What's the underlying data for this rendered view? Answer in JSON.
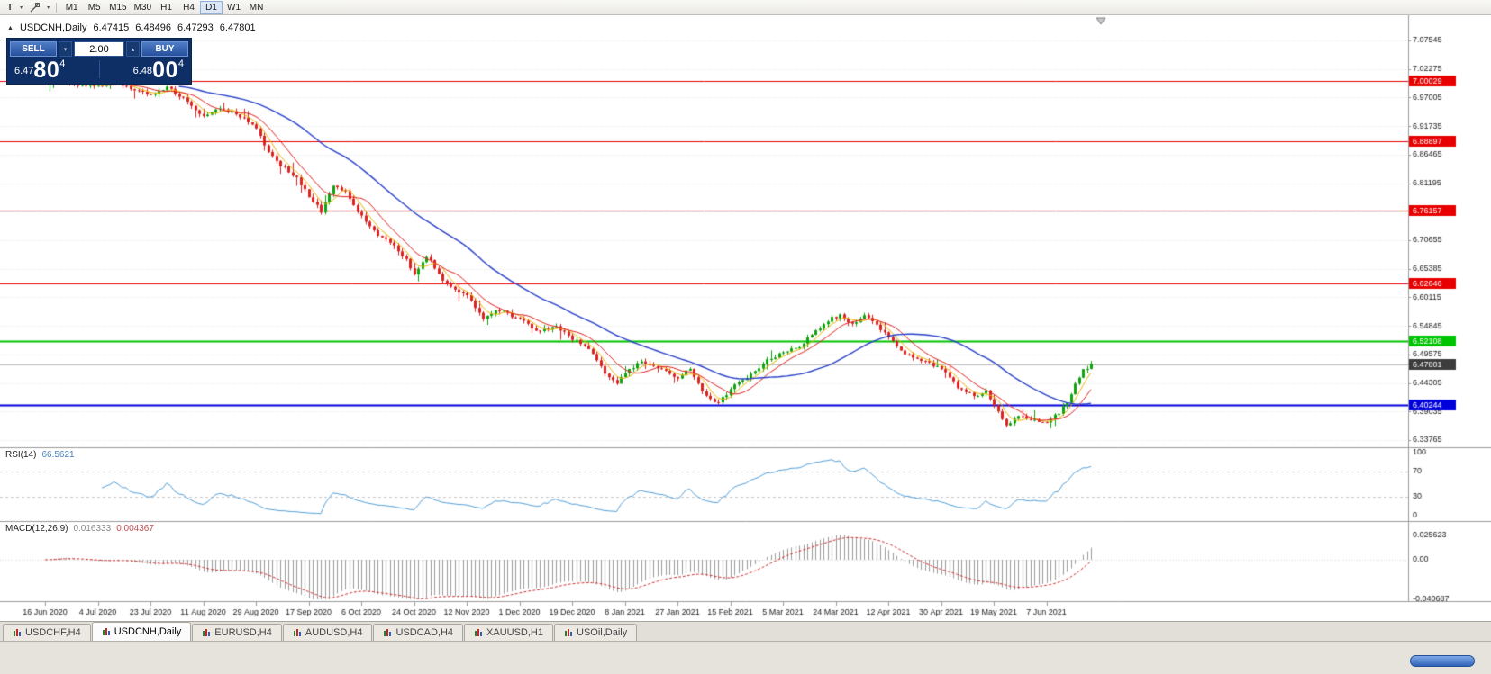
{
  "icons": {
    "chevron_down": "▾",
    "chevron_up": "▴",
    "symbol_marker": "▲"
  },
  "toolbar": {
    "text_tool_label": "T",
    "timeframes": [
      "M1",
      "M5",
      "M15",
      "M30",
      "H1",
      "H4",
      "D1",
      "W1",
      "MN"
    ],
    "active_timeframe": "D1"
  },
  "chart_header": {
    "symbol": "USDCNH,Daily",
    "open": "6.47415",
    "high": "6.48496",
    "low": "6.47293",
    "close": "6.47801"
  },
  "one_click": {
    "sell_label": "SELL",
    "buy_label": "BUY",
    "volume": "2.00",
    "sell_price": {
      "prefix": "6.47",
      "big": "80",
      "sup": "4"
    },
    "buy_price": {
      "prefix": "6.48",
      "big": "00",
      "sup": "4"
    }
  },
  "indicators": {
    "rsi": {
      "label": "RSI(14)",
      "value": "66.5621",
      "scale": [
        "100",
        "70",
        "30",
        "0"
      ],
      "levels": [
        70,
        30
      ]
    },
    "macd": {
      "label": "MACD(12,26,9)",
      "value_main": "0.016333",
      "value_signal": "0.004367",
      "scale": [
        "0.025623",
        "0.00",
        "-0.040687"
      ]
    }
  },
  "tabs": [
    {
      "label": "USDCHF,H4",
      "active": false
    },
    {
      "label": "USDCNH,Daily",
      "active": true
    },
    {
      "label": "EURUSD,H4",
      "active": false
    },
    {
      "label": "AUDUSD,H4",
      "active": false
    },
    {
      "label": "USDCAD,H4",
      "active": false
    },
    {
      "label": "XAUUSD,H1",
      "active": false
    },
    {
      "label": "USOil,Daily",
      "active": false
    }
  ],
  "chart_data": {
    "type": "candlestick",
    "symbol": "USDCNH",
    "period": "Daily",
    "ohlc_display": {
      "open": 6.47415,
      "high": 6.48496,
      "low": 6.47293,
      "close": 6.47801
    },
    "price_scale": {
      "ticks": [
        "7.07545",
        "7.02275",
        "6.97005",
        "6.91735",
        "6.86465",
        "6.81195",
        "6.75925",
        "6.70655",
        "6.65385",
        "6.60115",
        "6.54845",
        "6.49575",
        "6.44305",
        "6.39035",
        "6.33765"
      ]
    },
    "time_axis": [
      "16 Jun 2020",
      "4 Jul 2020",
      "23 Jul 2020",
      "11 Aug 2020",
      "29 Aug 2020",
      "17 Sep 2020",
      "6 Oct 2020",
      "24 Oct 2020",
      "12 Nov 2020",
      "1 Dec 2020",
      "19 Dec 2020",
      "8 Jan 2021",
      "27 Jan 2021",
      "15 Feb 2021",
      "5 Mar 2021",
      "24 Mar 2021",
      "12 Apr 2021",
      "30 Apr 2021",
      "19 May 2021",
      "7 Jun 2021"
    ],
    "levels": [
      {
        "value": 7.00029,
        "label": "7.00029",
        "color": "#e80000",
        "width": 1
      },
      {
        "value": 6.88897,
        "label": "6.88897",
        "color": "#e80000",
        "width": 1
      },
      {
        "value": 6.76157,
        "label": "6.76157",
        "color": "#e80000",
        "width": 1
      },
      {
        "value": 6.62646,
        "label": "6.62646",
        "color": "#e80000",
        "width": 1
      },
      {
        "value": 6.52108,
        "label": "6.52108",
        "color": "#00c400",
        "width": 2
      },
      {
        "value": 6.40244,
        "label": "6.40244",
        "color": "#0000dd",
        "width": 2
      }
    ],
    "current_price": {
      "value": 6.47801,
      "label": "6.47801",
      "line_color": "#b8b8b8",
      "tag_color": "#3c3c3c"
    },
    "candle_count": 259,
    "waypoints": [
      [
        0,
        6.999
      ],
      [
        4,
        7.008
      ],
      [
        8,
        6.994
      ],
      [
        13,
        6.992
      ],
      [
        17,
        7.0
      ],
      [
        21,
        6.986
      ],
      [
        26,
        6.975
      ],
      [
        30,
        6.99
      ],
      [
        34,
        6.968
      ],
      [
        39,
        6.936
      ],
      [
        43,
        6.95
      ],
      [
        47,
        6.942
      ],
      [
        52,
        6.914
      ],
      [
        55,
        6.87
      ],
      [
        58,
        6.846
      ],
      [
        62,
        6.822
      ],
      [
        65,
        6.788
      ],
      [
        68,
        6.76
      ],
      [
        71,
        6.806
      ],
      [
        74,
        6.795
      ],
      [
        78,
        6.75
      ],
      [
        82,
        6.716
      ],
      [
        86,
        6.698
      ],
      [
        89,
        6.67
      ],
      [
        91,
        6.644
      ],
      [
        94,
        6.678
      ],
      [
        98,
        6.634
      ],
      [
        101,
        6.616
      ],
      [
        104,
        6.604
      ],
      [
        108,
        6.564
      ],
      [
        112,
        6.578
      ],
      [
        117,
        6.56
      ],
      [
        122,
        6.538
      ],
      [
        126,
        6.548
      ],
      [
        130,
        6.525
      ],
      [
        134,
        6.505
      ],
      [
        138,
        6.46
      ],
      [
        141,
        6.442
      ],
      [
        143,
        6.464
      ],
      [
        147,
        6.482
      ],
      [
        151,
        6.47
      ],
      [
        156,
        6.454
      ],
      [
        159,
        6.47
      ],
      [
        162,
        6.428
      ],
      [
        165,
        6.405
      ],
      [
        168,
        6.42
      ],
      [
        170,
        6.442
      ],
      [
        174,
        6.458
      ],
      [
        178,
        6.486
      ],
      [
        182,
        6.498
      ],
      [
        186,
        6.51
      ],
      [
        190,
        6.54
      ],
      [
        194,
        6.562
      ],
      [
        196,
        6.568
      ],
      [
        199,
        6.552
      ],
      [
        202,
        6.57
      ],
      [
        205,
        6.55
      ],
      [
        208,
        6.528
      ],
      [
        212,
        6.496
      ],
      [
        216,
        6.484
      ],
      [
        221,
        6.47
      ],
      [
        225,
        6.436
      ],
      [
        229,
        6.418
      ],
      [
        232,
        6.428
      ],
      [
        234,
        6.4
      ],
      [
        237,
        6.364
      ],
      [
        240,
        6.384
      ],
      [
        243,
        6.374
      ],
      [
        247,
        6.37
      ],
      [
        250,
        6.388
      ],
      [
        252,
        6.408
      ],
      [
        254,
        6.44
      ],
      [
        256,
        6.466
      ],
      [
        258,
        6.478
      ]
    ],
    "moving_averages": [
      {
        "period": 5,
        "color": "#e8b400"
      },
      {
        "period": 10,
        "color": "#e02020"
      },
      {
        "period": 34,
        "color": "#2840c8"
      }
    ],
    "colors": {
      "up": "#0fa30f",
      "down": "#dd2222",
      "grid": "#e4e4e4"
    },
    "rsi": {
      "period": 14,
      "color": "#55a0d8",
      "range": [
        0,
        100
      ]
    },
    "macd": {
      "fast": 12,
      "slow": 26,
      "signal": 9,
      "hist_color": "#9a9a9a",
      "signal_color": "#d03030",
      "range": [
        -0.040687,
        0.025623
      ]
    }
  }
}
